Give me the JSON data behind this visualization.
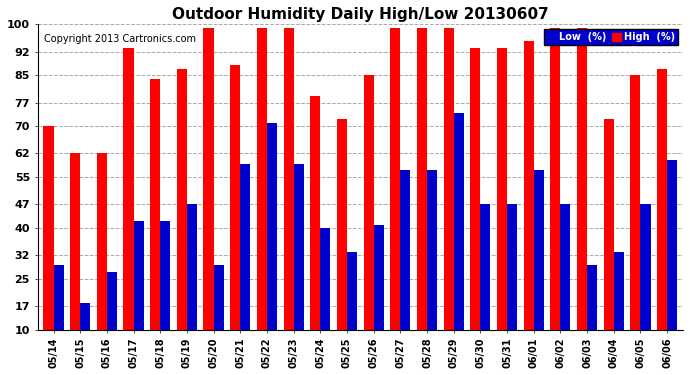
{
  "title": "Outdoor Humidity Daily High/Low 20130607",
  "copyright": "Copyright 2013 Cartronics.com",
  "dates": [
    "05/14",
    "05/15",
    "05/16",
    "05/17",
    "05/18",
    "05/19",
    "05/20",
    "05/21",
    "05/22",
    "05/23",
    "05/24",
    "05/25",
    "05/26",
    "05/27",
    "05/28",
    "05/29",
    "05/30",
    "05/31",
    "06/01",
    "06/02",
    "06/03",
    "06/04",
    "06/05",
    "06/06"
  ],
  "high": [
    70,
    62,
    62,
    93,
    84,
    87,
    99,
    88,
    99,
    99,
    79,
    72,
    85,
    99,
    99,
    99,
    93,
    93,
    95,
    99,
    99,
    72,
    85,
    87
  ],
  "low": [
    29,
    18,
    27,
    42,
    42,
    47,
    29,
    59,
    71,
    59,
    40,
    33,
    41,
    57,
    57,
    74,
    47,
    47,
    57,
    47,
    29,
    33,
    47,
    60
  ],
  "bar_width": 0.38,
  "high_color": "#ff0000",
  "low_color": "#0000cc",
  "bg_color": "#ffffff",
  "grid_color": "#aaaaaa",
  "ylabel_ticks": [
    10,
    17,
    25,
    32,
    40,
    47,
    55,
    62,
    70,
    77,
    85,
    92,
    100
  ],
  "ylim": [
    10,
    100
  ],
  "legend_low_label": "Low  (%)",
  "legend_high_label": "High  (%)",
  "title_fontsize": 11,
  "tick_fontsize": 8,
  "copyright_fontsize": 7
}
